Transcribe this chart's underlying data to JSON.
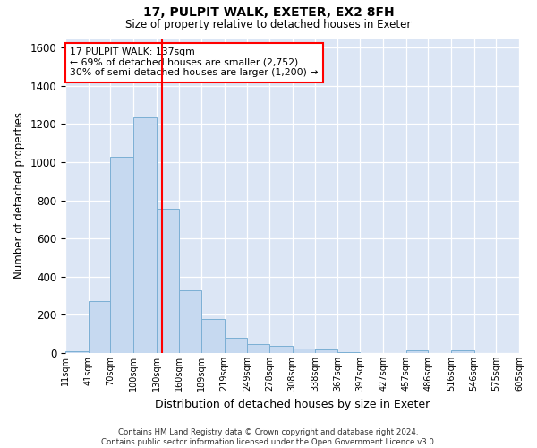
{
  "title_line1": "17, PULPIT WALK, EXETER, EX2 8FH",
  "title_line2": "Size of property relative to detached houses in Exeter",
  "xlabel": "Distribution of detached houses by size in Exeter",
  "ylabel": "Number of detached properties",
  "property_label": "17 PULPIT WALK: 137sqm",
  "annotation_line1": "← 69% of detached houses are smaller (2,752)",
  "annotation_line2": "30% of semi-detached houses are larger (1,200) →",
  "bin_edges": [
    11,
    41,
    70,
    100,
    130,
    160,
    189,
    219,
    249,
    278,
    308,
    338,
    367,
    397,
    427,
    457,
    486,
    516,
    546,
    575,
    605
  ],
  "bin_counts": [
    10,
    270,
    1030,
    1235,
    755,
    330,
    180,
    80,
    45,
    35,
    25,
    18,
    5,
    0,
    0,
    12,
    0,
    12,
    0,
    0
  ],
  "bar_color": "#c6d9f0",
  "bar_edgecolor": "#7bafd4",
  "vline_x": 137,
  "vline_color": "red",
  "ylim": [
    0,
    1650
  ],
  "yticks": [
    0,
    200,
    400,
    600,
    800,
    1000,
    1200,
    1400,
    1600
  ],
  "background_color": "#dce6f5",
  "grid_color": "#ffffff",
  "footnote_line1": "Contains HM Land Registry data © Crown copyright and database right 2024.",
  "footnote_line2": "Contains public sector information licensed under the Open Government Licence v3.0."
}
